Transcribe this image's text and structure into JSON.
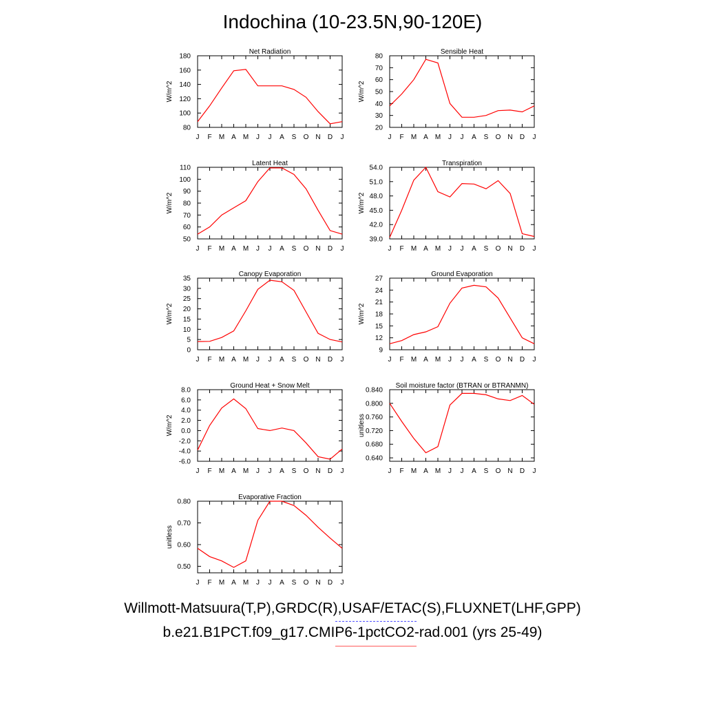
{
  "title": "Indochina (10-23.5N,90-120E)",
  "footer": {
    "observations": "Willmott-Matsuura(T,P),GRDC(R),USAF/ETAC(S),FLUXNET(LHF,GPP)",
    "model": "b.e21.B1PCT.f09_g17.CMIP6-1pctCO2-rad.001 (yrs 25-49)"
  },
  "colors": {
    "model": "#ff0000",
    "observations": "#4f4fff",
    "axes": "#000000"
  },
  "chart_data": [
    {
      "type": "line",
      "title": "Net Radiation",
      "ylabel": "W/m^2",
      "categories": [
        "J",
        "F",
        "M",
        "A",
        "M",
        "J",
        "J",
        "A",
        "S",
        "O",
        "N",
        "D",
        "J"
      ],
      "ylim": [
        80,
        180
      ],
      "yticks": [
        80,
        100,
        120,
        140,
        160,
        180
      ],
      "ytick_labels": [
        "80",
        "100",
        "120",
        "140",
        "160",
        "180"
      ],
      "series": [
        {
          "color": "#ff0000",
          "values": [
            88,
            110,
            135,
            159,
            161,
            138,
            138,
            138,
            133,
            122,
            102,
            85,
            88
          ]
        }
      ]
    },
    {
      "type": "line",
      "title": "Sensible Heat",
      "ylabel": "W/m^2",
      "categories": [
        "J",
        "F",
        "M",
        "A",
        "M",
        "J",
        "J",
        "A",
        "S",
        "O",
        "N",
        "D",
        "J"
      ],
      "ylim": [
        20,
        80
      ],
      "yticks": [
        20,
        30,
        40,
        50,
        60,
        70,
        80
      ],
      "ytick_labels": [
        "20",
        "30",
        "40",
        "50",
        "60",
        "70",
        "80"
      ],
      "series": [
        {
          "color": "#ff0000",
          "values": [
            38,
            48,
            60,
            77,
            74,
            40,
            28.5,
            28.5,
            30,
            34,
            34.5,
            33,
            38
          ]
        }
      ]
    },
    {
      "type": "line",
      "title": "Latent Heat",
      "ylabel": "W/m^2",
      "categories": [
        "J",
        "F",
        "M",
        "A",
        "M",
        "J",
        "J",
        "A",
        "S",
        "O",
        "N",
        "D",
        "J"
      ],
      "ylim": [
        50,
        110
      ],
      "yticks": [
        50,
        60,
        70,
        80,
        90,
        100,
        110
      ],
      "ytick_labels": [
        "50",
        "60",
        "70",
        "80",
        "90",
        "100",
        "110"
      ],
      "series": [
        {
          "color": "#ff0000",
          "values": [
            54,
            60,
            70,
            76,
            82,
            98,
            109.5,
            109.5,
            104,
            92,
            74,
            57,
            54
          ]
        }
      ]
    },
    {
      "type": "line",
      "title": "Transpiration",
      "ylabel": "W/m^2",
      "categories": [
        "J",
        "F",
        "M",
        "A",
        "M",
        "J",
        "J",
        "A",
        "S",
        "O",
        "N",
        "D",
        "J"
      ],
      "ylim": [
        39,
        54
      ],
      "yticks": [
        39,
        42,
        45,
        48,
        51,
        54
      ],
      "ytick_labels": [
        "39.0",
        "42.0",
        "45.0",
        "48.0",
        "51.0",
        "54.0"
      ],
      "series": [
        {
          "color": "#ff0000",
          "values": [
            39.3,
            45,
            51.3,
            54,
            48.9,
            47.8,
            50.6,
            50.5,
            49.5,
            51.2,
            48.5,
            40.1,
            39.5
          ]
        }
      ]
    },
    {
      "type": "line",
      "title": "Canopy Evaporation",
      "ylabel": "W/m^2",
      "categories": [
        "J",
        "F",
        "M",
        "A",
        "M",
        "J",
        "J",
        "A",
        "S",
        "O",
        "N",
        "D",
        "J"
      ],
      "ylim": [
        0,
        35
      ],
      "yticks": [
        0,
        5,
        10,
        15,
        20,
        25,
        30,
        35
      ],
      "ytick_labels": [
        "0",
        "5",
        "10",
        "15",
        "20",
        "25",
        "30",
        "35"
      ],
      "series": [
        {
          "color": "#ff0000",
          "values": [
            4,
            4.1,
            6,
            9.2,
            19,
            29.5,
            34,
            33.2,
            29,
            18.5,
            8,
            5,
            3.8
          ]
        }
      ]
    },
    {
      "type": "line",
      "title": "Ground Evaporation",
      "ylabel": "W/m^2",
      "categories": [
        "J",
        "F",
        "M",
        "A",
        "M",
        "J",
        "J",
        "A",
        "S",
        "O",
        "N",
        "D",
        "J"
      ],
      "ylim": [
        9,
        27
      ],
      "yticks": [
        9,
        12,
        15,
        18,
        21,
        24,
        27
      ],
      "ytick_labels": [
        "9",
        "12",
        "15",
        "18",
        "21",
        "24",
        "27"
      ],
      "series": [
        {
          "color": "#ff0000",
          "values": [
            10.5,
            11.3,
            12.8,
            13.5,
            14.8,
            20.7,
            24.5,
            25.2,
            24.8,
            22,
            17,
            12,
            10.5
          ]
        }
      ]
    },
    {
      "type": "line",
      "title": "Ground Heat + Snow Melt",
      "ylabel": "W/m^2",
      "categories": [
        "J",
        "F",
        "M",
        "A",
        "M",
        "J",
        "J",
        "A",
        "S",
        "O",
        "N",
        "D",
        "J"
      ],
      "ylim": [
        -6,
        8
      ],
      "yticks": [
        -6,
        -4,
        -2,
        0,
        2,
        4,
        6,
        8
      ],
      "ytick_labels": [
        "-6.0",
        "-4.0",
        "-2.0",
        "0.0",
        "2.0",
        "4.0",
        "6.0",
        "8.0"
      ],
      "series": [
        {
          "color": "#ff0000",
          "values": [
            -3.8,
            1,
            4.4,
            6.2,
            4.3,
            0.4,
            0,
            0.5,
            0,
            -2.4,
            -5.1,
            -5.6,
            -3.6
          ]
        }
      ]
    },
    {
      "type": "line",
      "title": "Soil moisture factor (BTRAN or BTRANMN)",
      "ylabel": "unitless",
      "categories": [
        "J",
        "F",
        "M",
        "A",
        "M",
        "J",
        "J",
        "A",
        "S",
        "O",
        "N",
        "D",
        "J"
      ],
      "ylim": [
        0.63,
        0.84
      ],
      "yticks": [
        0.64,
        0.68,
        0.72,
        0.76,
        0.8,
        0.84
      ],
      "ytick_labels": [
        "0.640",
        "0.680",
        "0.720",
        "0.760",
        "0.800",
        "0.840"
      ],
      "series": [
        {
          "color": "#ff0000",
          "values": [
            0.8,
            0.747,
            0.697,
            0.655,
            0.673,
            0.795,
            0.829,
            0.829,
            0.825,
            0.813,
            0.808,
            0.823,
            0.797
          ]
        }
      ]
    },
    {
      "type": "line",
      "title": "Evaporative Fraction",
      "ylabel": "unitless",
      "categories": [
        "J",
        "F",
        "M",
        "A",
        "M",
        "J",
        "J",
        "A",
        "S",
        "O",
        "N",
        "D",
        "J"
      ],
      "ylim": [
        0.47,
        0.8
      ],
      "yticks": [
        0.5,
        0.6,
        0.7,
        0.8
      ],
      "ytick_labels": [
        "0.50",
        "0.60",
        "0.70",
        "0.80"
      ],
      "series": [
        {
          "color": "#ff0000",
          "values": [
            0.583,
            0.545,
            0.525,
            0.495,
            0.525,
            0.712,
            0.8,
            0.8,
            0.78,
            0.735,
            0.68,
            0.63,
            0.583
          ]
        }
      ]
    }
  ]
}
